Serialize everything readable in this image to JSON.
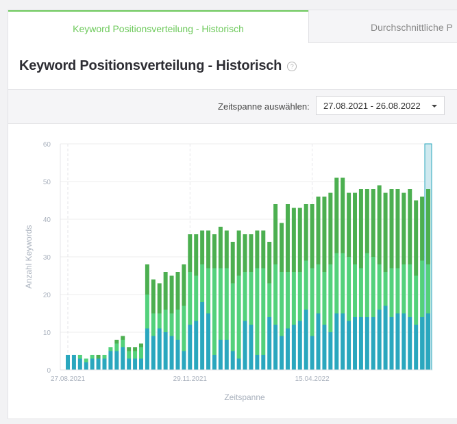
{
  "tabs": [
    {
      "label": "Keyword Positionsverteilung - Historisch",
      "active": true
    },
    {
      "label": "Durchschnittliche P",
      "active": false
    }
  ],
  "title": "Keyword Positionsverteilung - Historisch",
  "help_icon": "question-circle-icon",
  "filter": {
    "label": "Zeitspanne auswählen:",
    "value": "27.08.2021 - 26.08.2022"
  },
  "chart_data": {
    "type": "bar",
    "stacked": true,
    "xlabel": "Zeitspanne",
    "ylabel": "Anzahl Keywords",
    "ylim": [
      0,
      60
    ],
    "yticks": [
      0,
      10,
      20,
      30,
      40,
      50,
      60
    ],
    "xtick_labels": [
      {
        "index": 0,
        "label": "27.08.2021"
      },
      {
        "index": 20,
        "label": "29.11.2021"
      },
      {
        "index": 40,
        "label": "15.04.2022"
      }
    ],
    "grid": true,
    "colors": [
      "#2aa7be",
      "#53d17b",
      "#4caf50"
    ],
    "highlighted_index": 59,
    "series": [
      {
        "values": [
          4,
          4,
          3,
          2,
          3,
          3,
          3,
          5,
          5,
          6,
          3,
          3,
          3,
          11,
          9,
          11,
          10,
          9,
          8,
          5,
          12,
          13,
          18,
          15,
          4,
          8,
          8,
          5,
          3,
          13,
          12,
          4,
          4,
          14,
          12,
          9,
          11,
          12,
          13,
          16,
          9,
          15,
          12,
          10,
          15,
          15,
          13,
          14,
          14,
          14,
          14,
          16,
          17,
          14,
          15,
          15,
          14,
          12,
          14,
          15
        ]
      },
      {
        "values": [
          0,
          0,
          1,
          1,
          1,
          0,
          1,
          1,
          2,
          2,
          2,
          2,
          3,
          9,
          6,
          4,
          6,
          6,
          8,
          12,
          14,
          12,
          10,
          12,
          23,
          19,
          19,
          18,
          22,
          13,
          14,
          23,
          23,
          9,
          16,
          17,
          15,
          14,
          13,
          13,
          18,
          13,
          14,
          18,
          16,
          16,
          17,
          14,
          13,
          17,
          16,
          12,
          9,
          13,
          12,
          13,
          14,
          13,
          15,
          13
        ]
      },
      {
        "values": [
          0,
          0,
          0,
          0,
          0,
          1,
          0,
          0,
          1,
          1,
          1,
          1,
          1,
          8,
          9,
          8,
          10,
          10,
          10,
          11,
          10,
          11,
          9,
          10,
          9,
          11,
          10,
          11,
          12,
          10,
          10,
          10,
          10,
          11,
          16,
          13,
          18,
          17,
          17,
          15,
          17,
          18,
          20,
          19,
          20,
          20,
          17,
          19,
          21,
          17,
          18,
          21,
          21,
          21,
          21,
          19,
          20,
          20,
          17,
          20
        ]
      }
    ]
  }
}
